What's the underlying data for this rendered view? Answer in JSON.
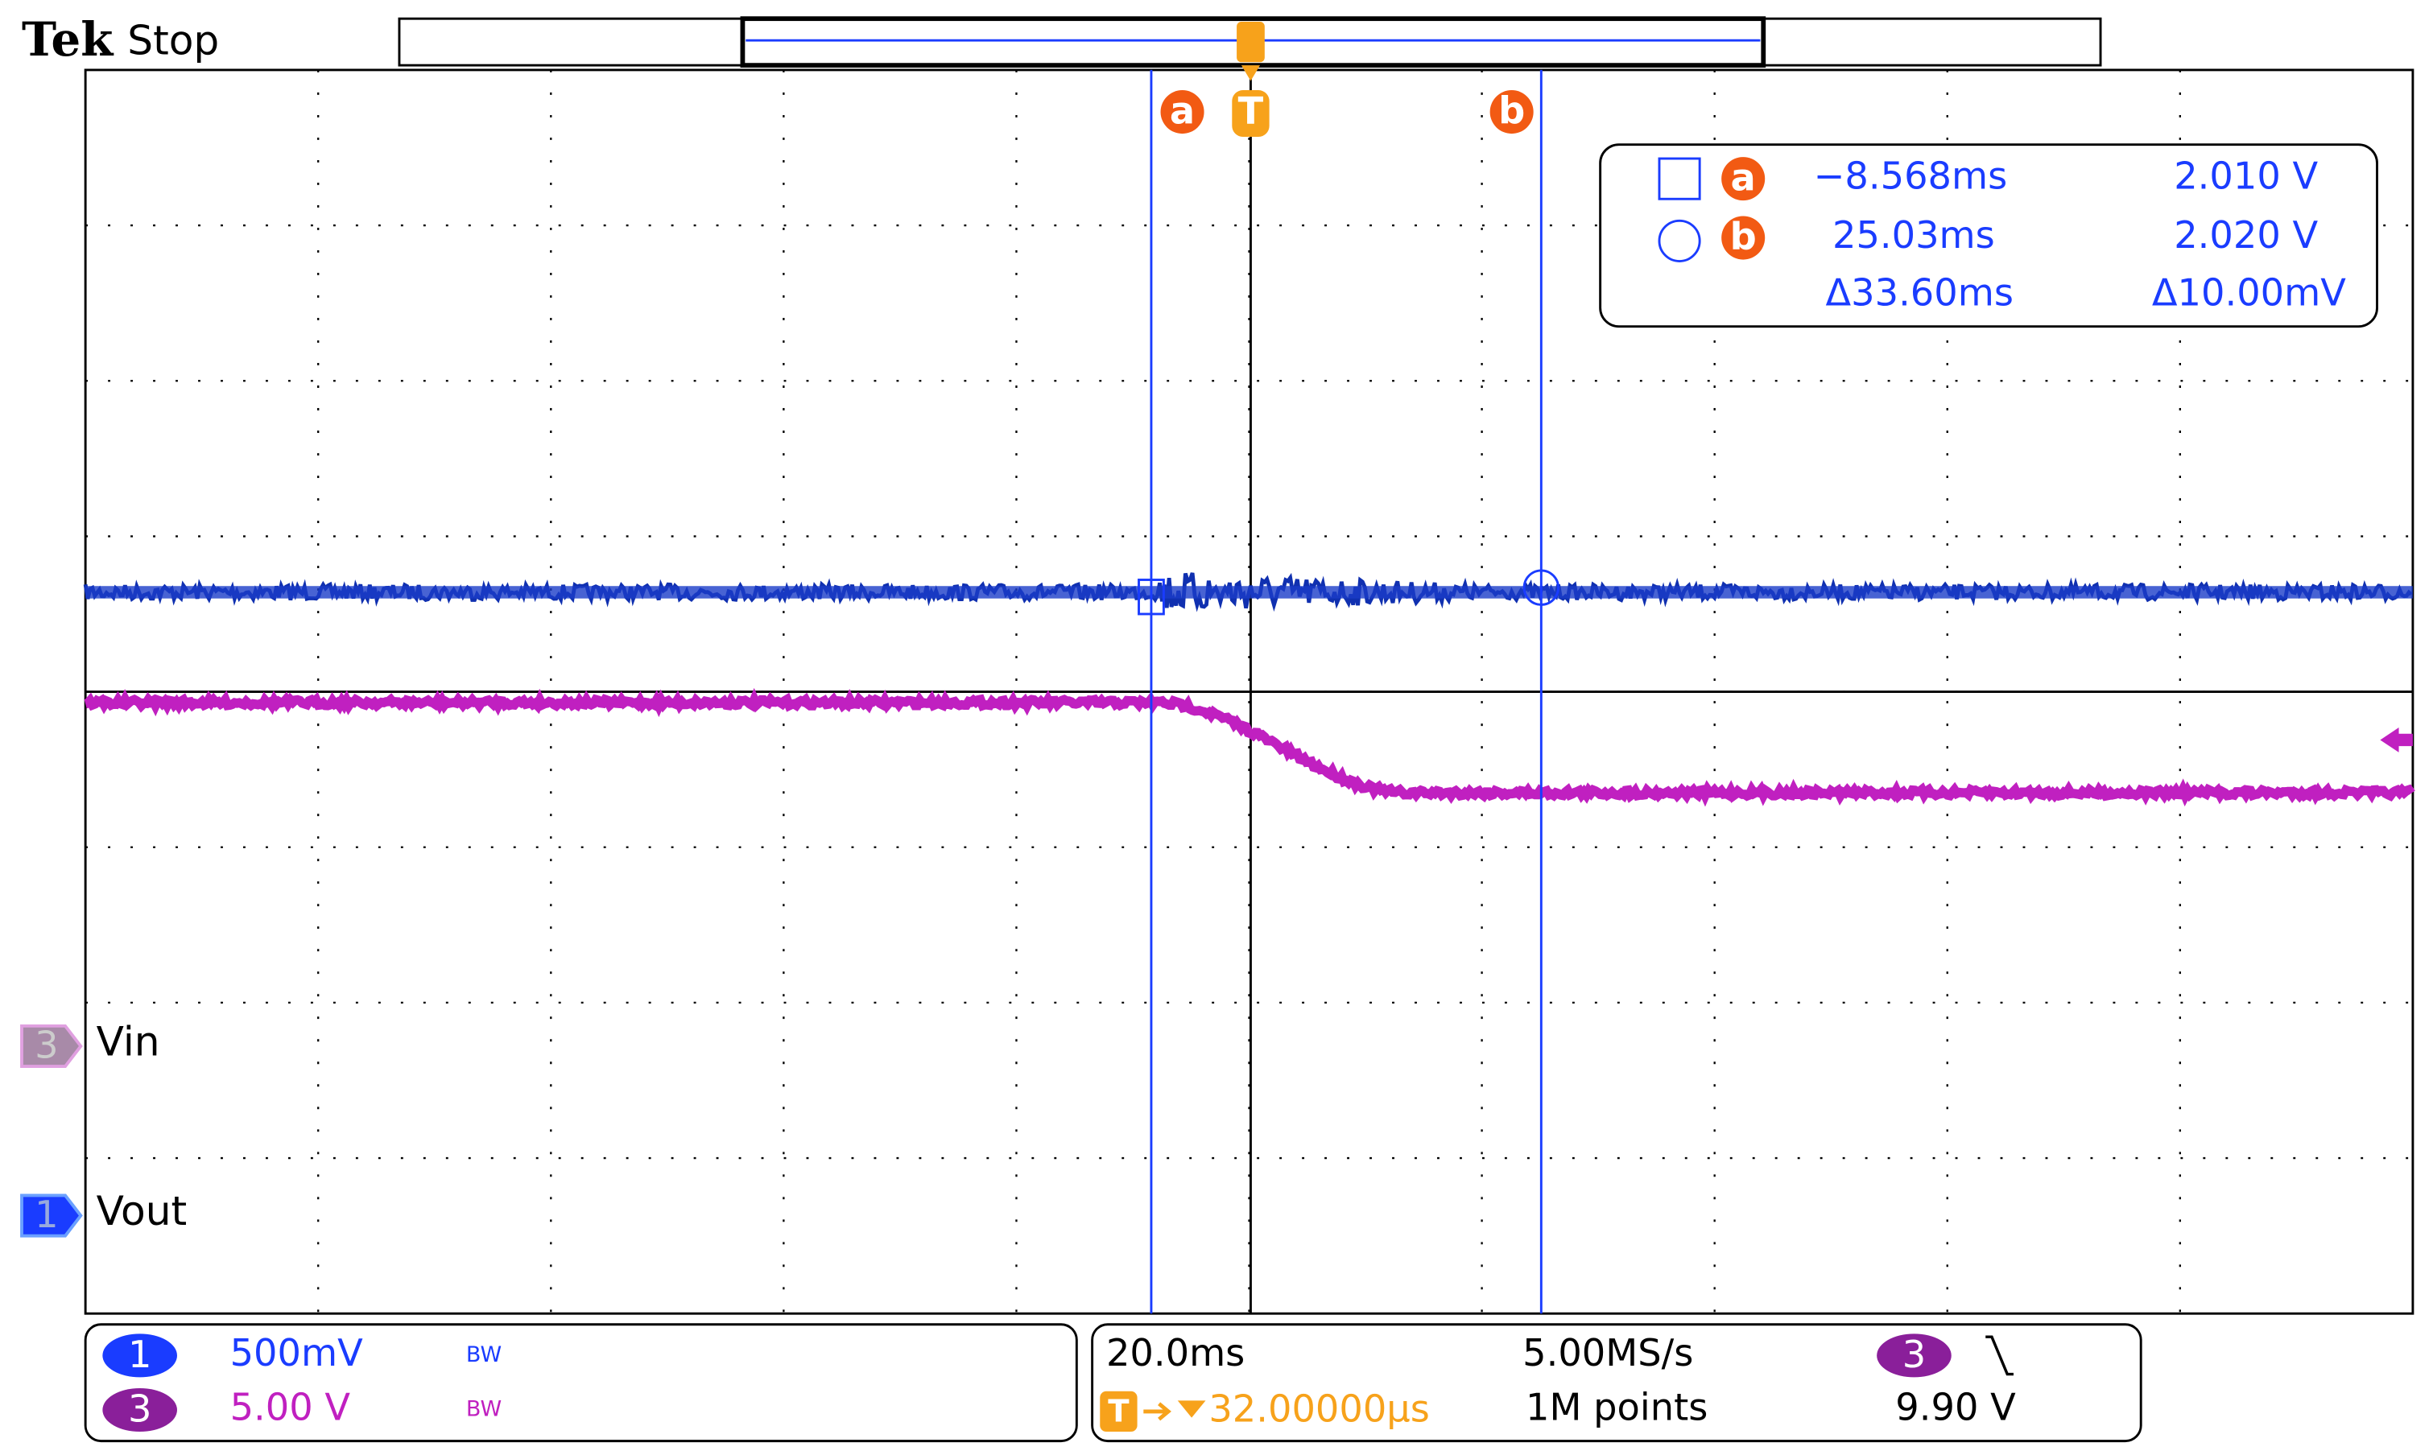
{
  "header": {
    "brand": "Tek",
    "status": "Stop"
  },
  "markers": {
    "cursor_a": "a",
    "trigger": "T",
    "cursor_b": "b"
  },
  "cursor_readout": {
    "a": {
      "label": "a",
      "time": "−8.568ms",
      "voltage": "2.010 V"
    },
    "b": {
      "label": "b",
      "time": "25.03ms",
      "voltage": "2.020 V"
    },
    "delta_time": "Δ33.60ms",
    "delta_voltage": "Δ10.00mV"
  },
  "traces": [
    {
      "number": "3",
      "label": "Vin"
    },
    {
      "number": "1",
      "label": "Vout"
    }
  ],
  "vertical": [
    {
      "number": "1",
      "scale": "500mV",
      "bandwidth": "BW"
    },
    {
      "number": "3",
      "scale": "5.00 V",
      "bandwidth": "BW"
    }
  ],
  "horizontal": {
    "scale": "20.0ms",
    "trigger_marker": "T",
    "trigger_delay": "32.00000µs",
    "sample_rate": "5.00MS/s",
    "record_length": "1M points"
  },
  "trigger": {
    "channel": "3",
    "level": "9.90 V"
  }
}
